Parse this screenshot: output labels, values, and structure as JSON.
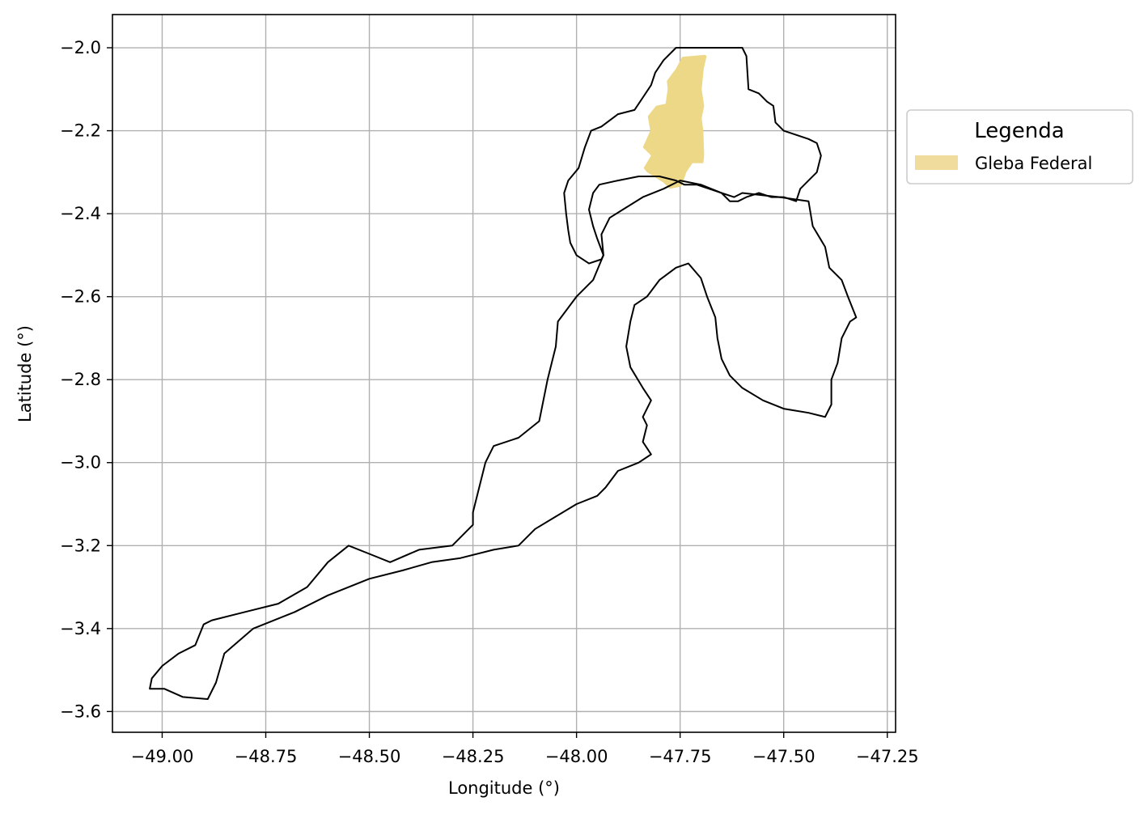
{
  "map": {
    "x_axis": {
      "label": "Longitude (°)",
      "range": [
        -49.12,
        -47.23
      ],
      "ticks": [
        -49.0,
        -48.75,
        -48.5,
        -48.25,
        -48.0,
        -47.75,
        -47.5,
        -47.25
      ],
      "tick_labels": [
        "−49.00",
        "−48.75",
        "−48.50",
        "−48.25",
        "−48.00",
        "−47.75",
        "−47.50",
        "−47.25"
      ]
    },
    "y_axis": {
      "label": "Latitude (°)",
      "range": [
        -3.65,
        -1.92
      ],
      "ticks": [
        -2.0,
        -2.2,
        -2.4,
        -2.6,
        -2.8,
        -3.0,
        -3.2,
        -3.4,
        -3.6
      ],
      "tick_labels": [
        "−2.0",
        "−2.2",
        "−2.4",
        "−2.6",
        "−2.8",
        "−3.0",
        "−3.2",
        "−3.4",
        "−3.6"
      ]
    },
    "grid": true,
    "legend": {
      "title": "Legenda",
      "placement": "outside-right",
      "entries": [
        {
          "label": "Gleba Federal",
          "color": "#f0dc9c"
        }
      ]
    },
    "layers": {
      "gleba_color": "#ecd886",
      "outline_color": "#000000",
      "grid_color": "#b0b0b0",
      "gleba": [
        [
          -47.745,
          -2.022
        ],
        [
          -47.69,
          -2.017
        ],
        [
          -47.686,
          -2.02
        ],
        [
          -47.693,
          -2.05
        ],
        [
          -47.698,
          -2.1
        ],
        [
          -47.692,
          -2.14
        ],
        [
          -47.698,
          -2.17
        ],
        [
          -47.694,
          -2.2
        ],
        [
          -47.692,
          -2.26
        ],
        [
          -47.694,
          -2.278
        ],
        [
          -47.72,
          -2.278
        ],
        [
          -47.735,
          -2.3
        ],
        [
          -47.745,
          -2.33
        ],
        [
          -47.75,
          -2.335
        ],
        [
          -47.775,
          -2.34
        ],
        [
          -47.79,
          -2.325
        ],
        [
          -47.83,
          -2.3
        ],
        [
          -47.838,
          -2.29
        ],
        [
          -47.82,
          -2.26
        ],
        [
          -47.84,
          -2.24
        ],
        [
          -47.822,
          -2.2
        ],
        [
          -47.828,
          -2.165
        ],
        [
          -47.808,
          -2.14
        ],
        [
          -47.785,
          -2.135
        ],
        [
          -47.78,
          -2.1
        ],
        [
          -47.782,
          -2.08
        ],
        [
          -47.76,
          -2.05
        ]
      ],
      "boundaries": [
        [
          [
            -47.76,
            -2.0
          ],
          [
            -47.6,
            -2.0
          ],
          [
            -47.59,
            -2.02
          ],
          [
            -47.585,
            -2.1
          ],
          [
            -47.56,
            -2.11
          ],
          [
            -47.54,
            -2.13
          ],
          [
            -47.525,
            -2.14
          ],
          [
            -47.52,
            -2.18
          ],
          [
            -47.5,
            -2.2
          ],
          [
            -47.47,
            -2.21
          ],
          [
            -47.44,
            -2.22
          ],
          [
            -47.42,
            -2.23
          ],
          [
            -47.41,
            -2.26
          ],
          [
            -47.42,
            -2.3
          ],
          [
            -47.44,
            -2.32
          ],
          [
            -47.46,
            -2.34
          ],
          [
            -47.47,
            -2.37
          ],
          [
            -47.5,
            -2.36
          ],
          [
            -47.53,
            -2.36
          ],
          [
            -47.56,
            -2.35
          ],
          [
            -47.59,
            -2.36
          ],
          [
            -47.61,
            -2.37
          ],
          [
            -47.63,
            -2.37
          ],
          [
            -47.65,
            -2.35
          ],
          [
            -47.68,
            -2.34
          ],
          [
            -47.71,
            -2.33
          ],
          [
            -47.74,
            -2.33
          ],
          [
            -47.76,
            -2.32
          ],
          [
            -47.8,
            -2.31
          ],
          [
            -47.85,
            -2.31
          ],
          [
            -47.9,
            -2.32
          ],
          [
            -47.945,
            -2.33
          ],
          [
            -47.96,
            -2.35
          ],
          [
            -47.97,
            -2.39
          ],
          [
            -47.96,
            -2.43
          ],
          [
            -47.95,
            -2.46
          ],
          [
            -47.935,
            -2.5
          ],
          [
            -47.94,
            -2.51
          ],
          [
            -47.97,
            -2.52
          ],
          [
            -48.0,
            -2.5
          ],
          [
            -48.015,
            -2.47
          ],
          [
            -48.02,
            -2.44
          ],
          [
            -48.025,
            -2.4
          ],
          [
            -48.03,
            -2.35
          ],
          [
            -48.02,
            -2.32
          ],
          [
            -47.995,
            -2.29
          ],
          [
            -47.98,
            -2.24
          ],
          [
            -47.965,
            -2.2
          ],
          [
            -47.94,
            -2.19
          ],
          [
            -47.9,
            -2.16
          ],
          [
            -47.86,
            -2.15
          ],
          [
            -47.84,
            -2.12
          ],
          [
            -47.82,
            -2.09
          ],
          [
            -47.81,
            -2.06
          ],
          [
            -47.79,
            -2.03
          ]
        ],
        [
          [
            -47.6,
            -2.35
          ],
          [
            -47.51,
            -2.36
          ],
          [
            -47.44,
            -2.37
          ],
          [
            -47.43,
            -2.43
          ],
          [
            -47.4,
            -2.48
          ],
          [
            -47.39,
            -2.53
          ],
          [
            -47.36,
            -2.56
          ],
          [
            -47.345,
            -2.6
          ],
          [
            -47.325,
            -2.65
          ],
          [
            -47.34,
            -2.66
          ],
          [
            -47.36,
            -2.7
          ],
          [
            -47.37,
            -2.76
          ],
          [
            -47.385,
            -2.8
          ],
          [
            -47.385,
            -2.86
          ],
          [
            -47.4,
            -2.89
          ],
          [
            -47.44,
            -2.88
          ],
          [
            -47.5,
            -2.87
          ],
          [
            -47.55,
            -2.85
          ],
          [
            -47.6,
            -2.82
          ],
          [
            -47.63,
            -2.79
          ],
          [
            -47.65,
            -2.75
          ],
          [
            -47.66,
            -2.7
          ],
          [
            -47.665,
            -2.65
          ],
          [
            -47.685,
            -2.6
          ],
          [
            -47.7,
            -2.555
          ],
          [
            -47.73,
            -2.52
          ],
          [
            -47.76,
            -2.53
          ],
          [
            -47.8,
            -2.56
          ],
          [
            -47.83,
            -2.6
          ],
          [
            -47.86,
            -2.62
          ],
          [
            -47.87,
            -2.66
          ],
          [
            -47.88,
            -2.72
          ],
          [
            -47.87,
            -2.77
          ],
          [
            -47.84,
            -2.82
          ],
          [
            -47.82,
            -2.85
          ],
          [
            -47.84,
            -2.89
          ],
          [
            -47.83,
            -2.91
          ],
          [
            -47.84,
            -2.95
          ],
          [
            -47.82,
            -2.98
          ],
          [
            -47.85,
            -3.0
          ],
          [
            -47.9,
            -3.02
          ],
          [
            -47.93,
            -3.06
          ],
          [
            -47.95,
            -3.08
          ],
          [
            -48.0,
            -3.1
          ],
          [
            -48.05,
            -3.13
          ],
          [
            -48.1,
            -3.16
          ],
          [
            -48.14,
            -3.2
          ],
          [
            -48.2,
            -3.21
          ],
          [
            -48.28,
            -3.23
          ],
          [
            -48.35,
            -3.24
          ],
          [
            -48.42,
            -3.26
          ],
          [
            -48.5,
            -3.28
          ],
          [
            -48.6,
            -3.32
          ],
          [
            -48.68,
            -3.36
          ],
          [
            -48.78,
            -3.4
          ],
          [
            -48.85,
            -3.46
          ],
          [
            -48.87,
            -3.53
          ],
          [
            -48.89,
            -3.57
          ],
          [
            -48.95,
            -3.565
          ],
          [
            -48.995,
            -3.545
          ],
          [
            -49.03,
            -3.545
          ],
          [
            -49.025,
            -3.52
          ],
          [
            -49.0,
            -3.49
          ],
          [
            -48.96,
            -3.46
          ],
          [
            -48.92,
            -3.44
          ],
          [
            -48.9,
            -3.39
          ],
          [
            -48.88,
            -3.38
          ],
          [
            -48.8,
            -3.36
          ],
          [
            -48.72,
            -3.34
          ],
          [
            -48.65,
            -3.3
          ],
          [
            -48.6,
            -3.24
          ],
          [
            -48.55,
            -3.2
          ],
          [
            -48.5,
            -3.22
          ],
          [
            -48.45,
            -3.24
          ],
          [
            -48.38,
            -3.21
          ],
          [
            -48.3,
            -3.2
          ],
          [
            -48.25,
            -3.15
          ],
          [
            -48.25,
            -3.12
          ],
          [
            -48.22,
            -3.0
          ],
          [
            -48.2,
            -2.96
          ],
          [
            -48.14,
            -2.94
          ],
          [
            -48.09,
            -2.9
          ],
          [
            -48.07,
            -2.8
          ],
          [
            -48.05,
            -2.72
          ],
          [
            -48.045,
            -2.66
          ],
          [
            -48.0,
            -2.6
          ],
          [
            -47.96,
            -2.56
          ],
          [
            -47.935,
            -2.5
          ],
          [
            -47.94,
            -2.45
          ],
          [
            -47.92,
            -2.41
          ],
          [
            -47.88,
            -2.385
          ],
          [
            -47.84,
            -2.36
          ],
          [
            -47.79,
            -2.34
          ],
          [
            -47.75,
            -2.32
          ],
          [
            -47.7,
            -2.33
          ],
          [
            -47.65,
            -2.35
          ],
          [
            -47.62,
            -2.36
          ]
        ]
      ]
    }
  }
}
